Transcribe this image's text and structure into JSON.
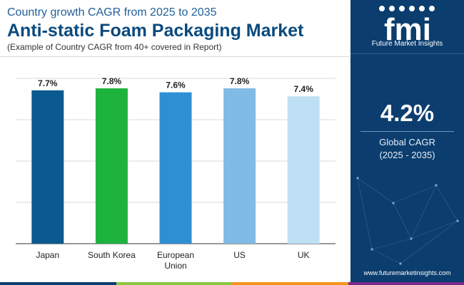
{
  "header": {
    "subtitle": "Country growth CAGR from 2025 to 2035",
    "title": "Anti-static Foam Packaging Market",
    "note": "(Example of Country CAGR from 40+ covered in Report)"
  },
  "chart_data": {
    "type": "bar",
    "categories": [
      [
        "Japan"
      ],
      [
        "South Korea"
      ],
      [
        "European",
        "Union"
      ],
      [
        "US"
      ],
      [
        "UK"
      ]
    ],
    "values": [
      7.7,
      7.8,
      7.6,
      7.8,
      7.4
    ],
    "data_labels": [
      "7.7%",
      "7.8%",
      "7.6%",
      "7.8%",
      "7.4%"
    ],
    "colors": [
      "#0b5a8f",
      "#1db33d",
      "#2f8fd3",
      "#7fbbe5",
      "#bfe0f4"
    ],
    "title": "",
    "xlabel": "",
    "ylabel": "",
    "ylim": [
      0,
      8.3
    ],
    "grid": true,
    "legend": "none"
  },
  "side": {
    "logo_letters": "fmi",
    "logo_text": "Future Market Insights",
    "cagr_value": "4.2%",
    "cagr_label_line1": "Global CAGR",
    "cagr_label_line2": "(2025 - 2035)",
    "website": "www.futuremarketinsights.com"
  },
  "bottom_bar_colors": [
    "#0b3d6e",
    "#8dc63f",
    "#f7941d",
    "#7b2a8b"
  ]
}
